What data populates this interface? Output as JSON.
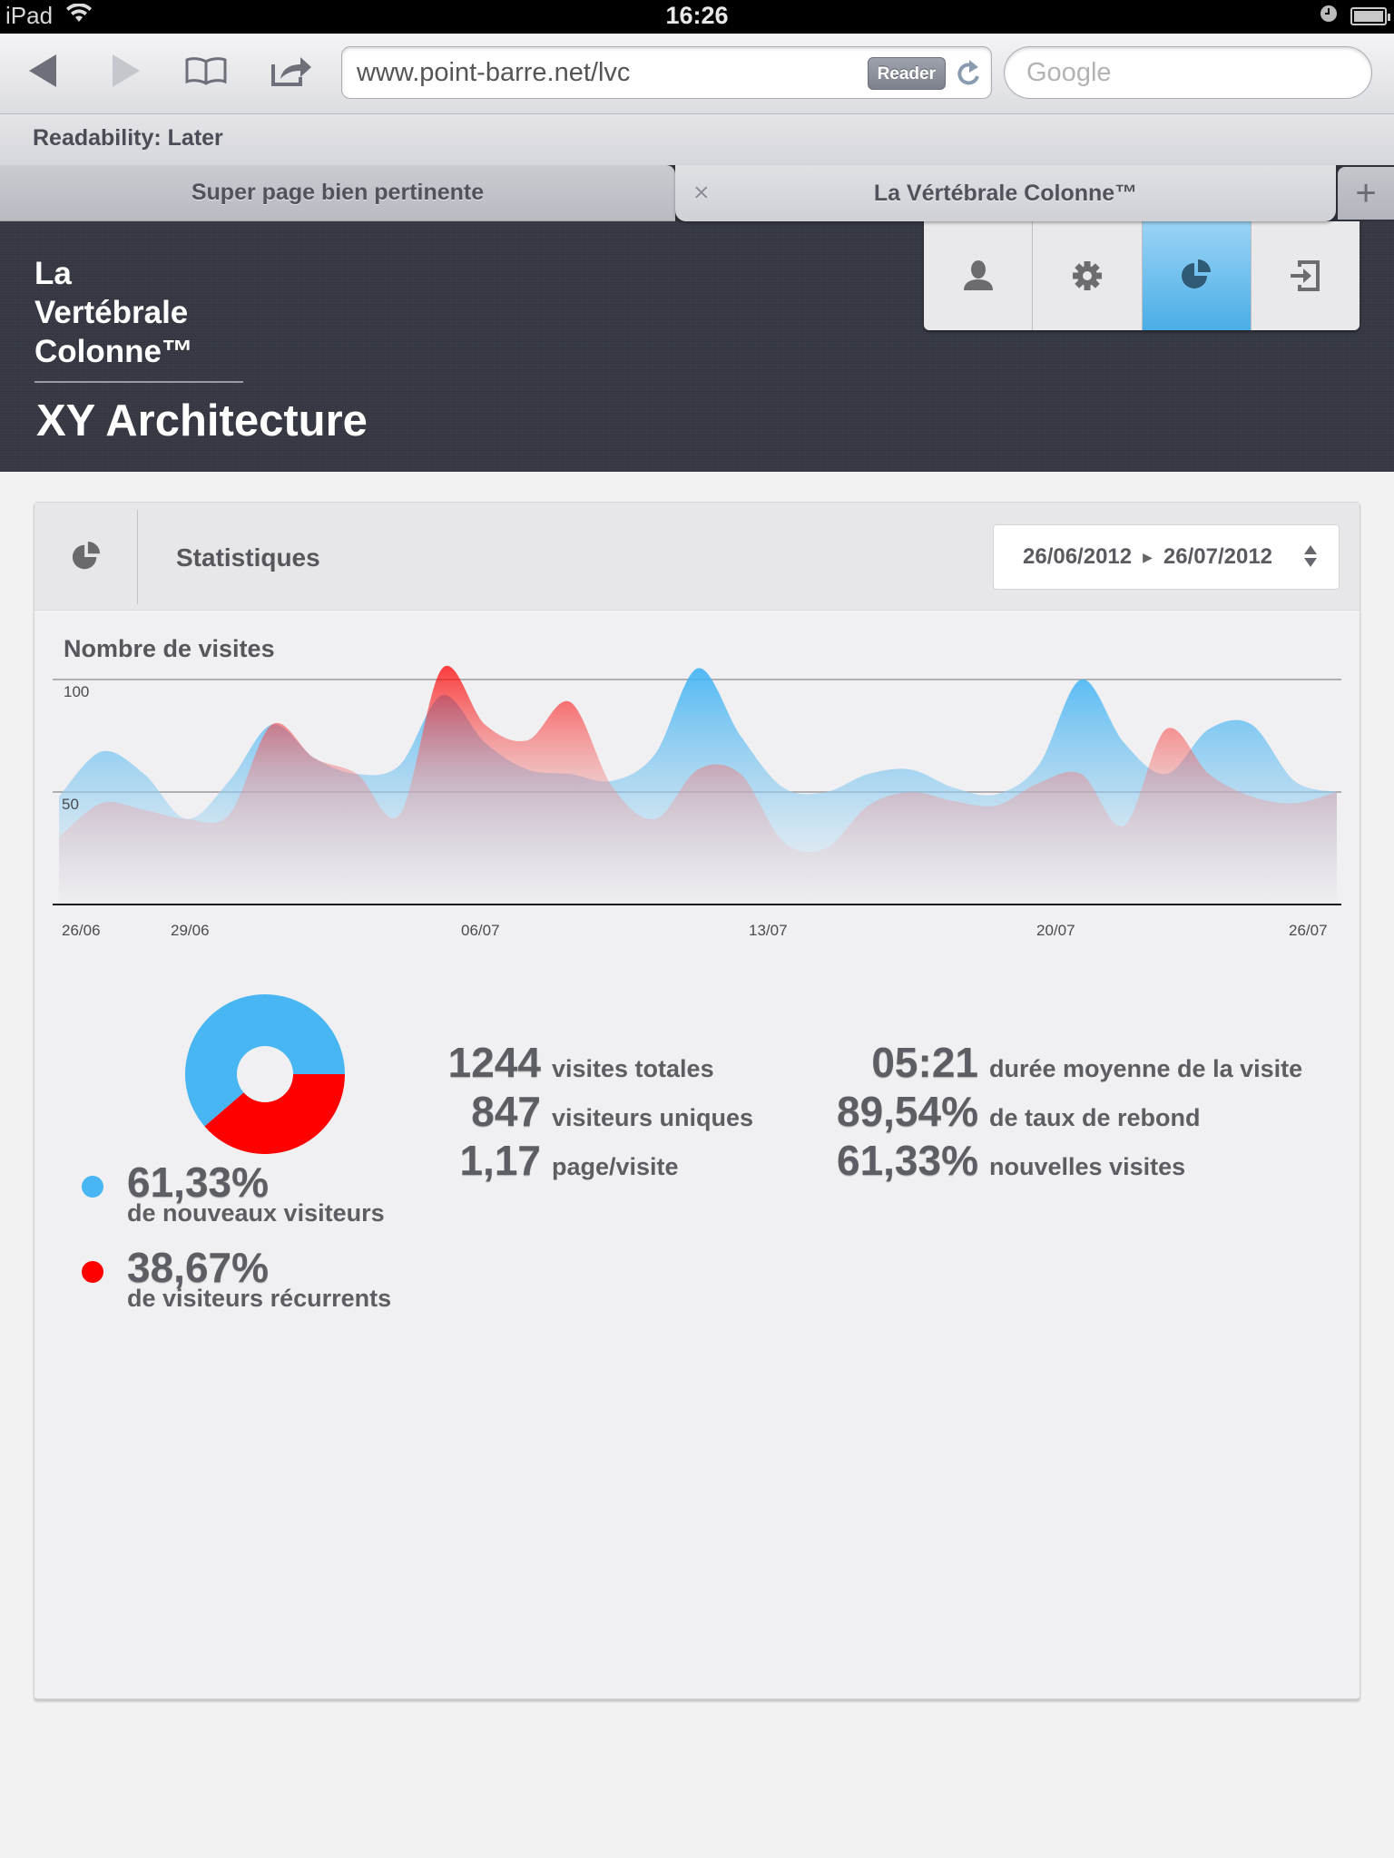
{
  "status_bar": {
    "device": "iPad",
    "time": "16:26",
    "icons": [
      "wifi-icon",
      "alarm-clock-icon",
      "battery-icon"
    ]
  },
  "browser": {
    "url": "www.point-barre.net/lvc",
    "reader_label": "Reader",
    "search_placeholder": "Google",
    "bookmarks": [
      {
        "label": "Readability: Later"
      }
    ],
    "tabs": [
      {
        "label": "Super page bien pertinente",
        "active": false
      },
      {
        "label": "La Vértébrale Colonne™",
        "active": true
      }
    ],
    "new_tab_label": "+",
    "close_tab_label": "×"
  },
  "app": {
    "brand_lines": [
      "La",
      "Vertébrale",
      "Colonne™"
    ],
    "client_name": "XY Architecture",
    "nav": [
      {
        "icon": "user-icon",
        "active": false
      },
      {
        "icon": "gear-icon",
        "active": false
      },
      {
        "icon": "pie-chart-icon",
        "active": true
      },
      {
        "icon": "logout-icon",
        "active": false
      }
    ],
    "accent_color": "#4aaee6"
  },
  "panel": {
    "title": "Statistiques",
    "date_from": "26/06/2012",
    "date_to": "26/07/2012",
    "chart_title": "Nombre de visites"
  },
  "chart_data": [
    {
      "type": "area",
      "title": "Nombre de visites",
      "xlabel": "",
      "ylabel": "",
      "ylim": [
        0,
        110
      ],
      "y_ticks": [
        50,
        100
      ],
      "grid": true,
      "x_tick_labels": [
        "26/06",
        "29/06",
        "06/07",
        "13/07",
        "20/07",
        "26/07"
      ],
      "x": [
        "26/06",
        "27/06",
        "28/06",
        "29/06",
        "30/06",
        "01/07",
        "02/07",
        "03/07",
        "04/07",
        "05/07",
        "06/07",
        "07/07",
        "08/07",
        "09/07",
        "10/07",
        "11/07",
        "12/07",
        "13/07",
        "14/07",
        "15/07",
        "16/07",
        "17/07",
        "18/07",
        "19/07",
        "20/07",
        "21/07",
        "22/07",
        "23/07",
        "24/07",
        "25/07",
        "26/07"
      ],
      "series": [
        {
          "name": "Nouveaux visiteurs",
          "color": "#48b6f2",
          "values": [
            48,
            68,
            58,
            38,
            55,
            80,
            65,
            58,
            62,
            93,
            72,
            60,
            58,
            55,
            67,
            105,
            75,
            52,
            50,
            58,
            60,
            52,
            49,
            62,
            100,
            72,
            58,
            78,
            80,
            55,
            50
          ]
        },
        {
          "name": "Visiteurs récurrents",
          "color": "#ff0000",
          "values": [
            30,
            45,
            42,
            38,
            40,
            80,
            65,
            58,
            40,
            105,
            80,
            73,
            90,
            52,
            38,
            60,
            58,
            28,
            25,
            44,
            50,
            46,
            44,
            54,
            58,
            35,
            78,
            58,
            48,
            45,
            50
          ]
        }
      ]
    },
    {
      "type": "pie",
      "title": "Visiteurs",
      "categories": [
        "de nouveaux visiteurs",
        "de visiteurs récurrents"
      ],
      "values": [
        61.33,
        38.67
      ],
      "colors": [
        "#48b6f2",
        "#ff0000"
      ]
    }
  ],
  "legend": [
    {
      "value": "61,33%",
      "label": "de nouveaux visiteurs",
      "color": "#48b6f2"
    },
    {
      "value": "38,67%",
      "label": "de visiteurs récurrents",
      "color": "#ff0000"
    }
  ],
  "stats_left": [
    {
      "value": "1244",
      "label": "visites totales"
    },
    {
      "value": "847",
      "label": "visiteurs uniques"
    },
    {
      "value": "1,17",
      "label": "page/visite"
    }
  ],
  "stats_right": [
    {
      "value": "05:21",
      "label": "durée moyenne de la visite"
    },
    {
      "value": "89,54%",
      "label": "de taux de rebond"
    },
    {
      "value": "61,33%",
      "label": "nouvelles visites"
    }
  ]
}
